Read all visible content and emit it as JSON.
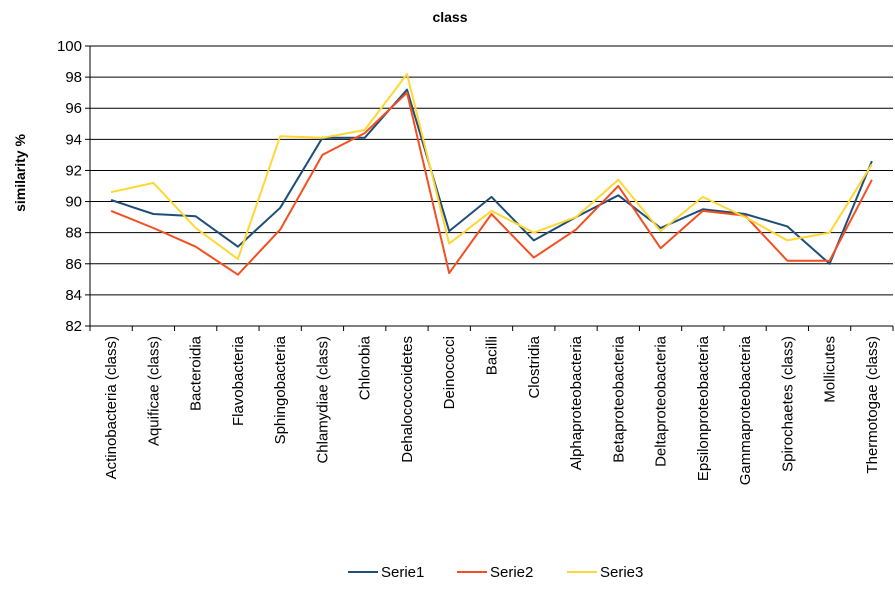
{
  "chart_data": {
    "type": "line",
    "title": "class",
    "xlabel": "",
    "ylabel": "similarity %",
    "ylim": [
      82,
      100
    ],
    "ytick_step": 2,
    "grid": "horizontal",
    "legend_position": "bottom",
    "categories": [
      "Actinobacteria (class)",
      "Aquificae (class)",
      "Bacteroidia",
      "Flavobacteria",
      "Sphingobacteria",
      "Chlamydiae (class)",
      "Chlorobia",
      "Dehalococcoidetes",
      "Deinococci",
      "Bacilli",
      "Clostridia",
      "Alphaproteobacteria",
      "Betaproteobacteria",
      "Deltaproteobacteria",
      "Epsilonproteobacteria",
      "Gammaproteobacteria",
      "Spirochaetes (class)",
      "Mollicutes",
      "Thermotogae (class)"
    ],
    "series": [
      {
        "name": "Serie1",
        "color": "#1F4E79",
        "values": [
          90.1,
          89.2,
          89.05,
          87.1,
          89.6,
          94.1,
          94.1,
          97.2,
          88.1,
          90.3,
          87.5,
          89.0,
          90.4,
          88.3,
          89.5,
          89.2,
          88.4,
          86.0,
          92.6
        ]
      },
      {
        "name": "Serie2",
        "color": "#F25022",
        "values": [
          89.4,
          88.3,
          87.1,
          85.3,
          88.2,
          93.0,
          94.4,
          97.0,
          85.4,
          89.2,
          86.4,
          88.2,
          91.0,
          87.0,
          89.4,
          89.1,
          86.2,
          86.2,
          91.4
        ]
      },
      {
        "name": "Serie3",
        "color": "#FFD732",
        "values": [
          90.6,
          91.2,
          88.3,
          86.3,
          94.2,
          94.1,
          94.6,
          98.2,
          87.3,
          89.4,
          88.0,
          89.0,
          91.4,
          88.1,
          90.3,
          89.0,
          87.5,
          88.0,
          92.4
        ]
      }
    ]
  }
}
